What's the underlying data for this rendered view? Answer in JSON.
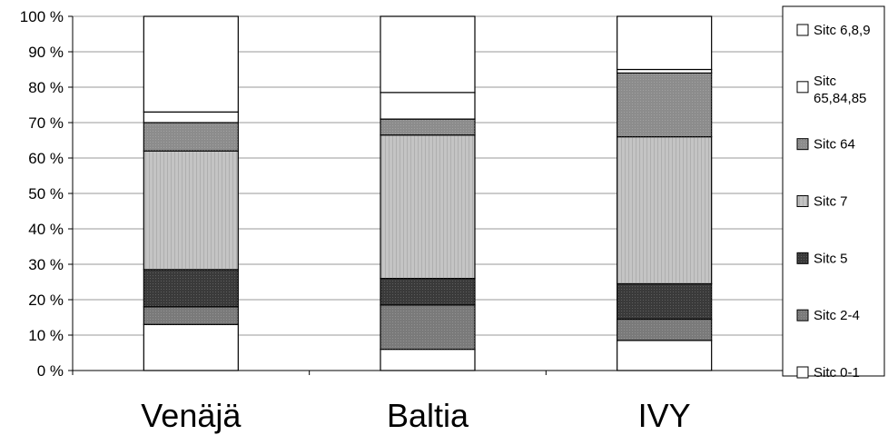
{
  "chart_data": {
    "type": "bar",
    "stacked": "percent",
    "categories": [
      "Venäjä",
      "Baltia",
      "IVY"
    ],
    "y_ticks": [
      "0 %",
      "10 %",
      "20 %",
      "30 %",
      "40 %",
      "50 %",
      "60 %",
      "70 %",
      "80 %",
      "90 %",
      "100 %"
    ],
    "ylim": [
      0,
      100
    ],
    "grid": true,
    "legend_position": "right",
    "series": [
      {
        "name": "Sitc 0-1",
        "values": [
          13,
          6,
          8.5
        ],
        "color": "#ffffff",
        "pattern": "none"
      },
      {
        "name": "Sitc 2-4",
        "values": [
          5,
          12.5,
          6
        ],
        "color": "#7a7a7a",
        "pattern": "dots"
      },
      {
        "name": "Sitc 5",
        "values": [
          10.5,
          7.5,
          10
        ],
        "color": "#3a3a3a",
        "pattern": "dots"
      },
      {
        "name": "Sitc 7",
        "values": [
          33.5,
          40.5,
          41.5
        ],
        "color": "#c4c4c4",
        "pattern": "stripes"
      },
      {
        "name": "Sitc 64",
        "values": [
          8,
          4.5,
          18
        ],
        "color": "#8c8c8c",
        "pattern": "dots"
      },
      {
        "name": "Sitc 65,84,85",
        "values": [
          3,
          7.5,
          1
        ],
        "color": "#ffffff",
        "pattern": "none"
      },
      {
        "name": "Sitc 6,8,9",
        "values": [
          27,
          21.5,
          15
        ],
        "color": "#ffffff",
        "pattern": "none"
      }
    ],
    "legend_order": [
      "Sitc 6,8,9",
      "Sitc 65,84,85",
      "Sitc 64",
      "Sitc 7",
      "Sitc 5",
      "Sitc 2-4",
      "Sitc 0-1"
    ]
  }
}
